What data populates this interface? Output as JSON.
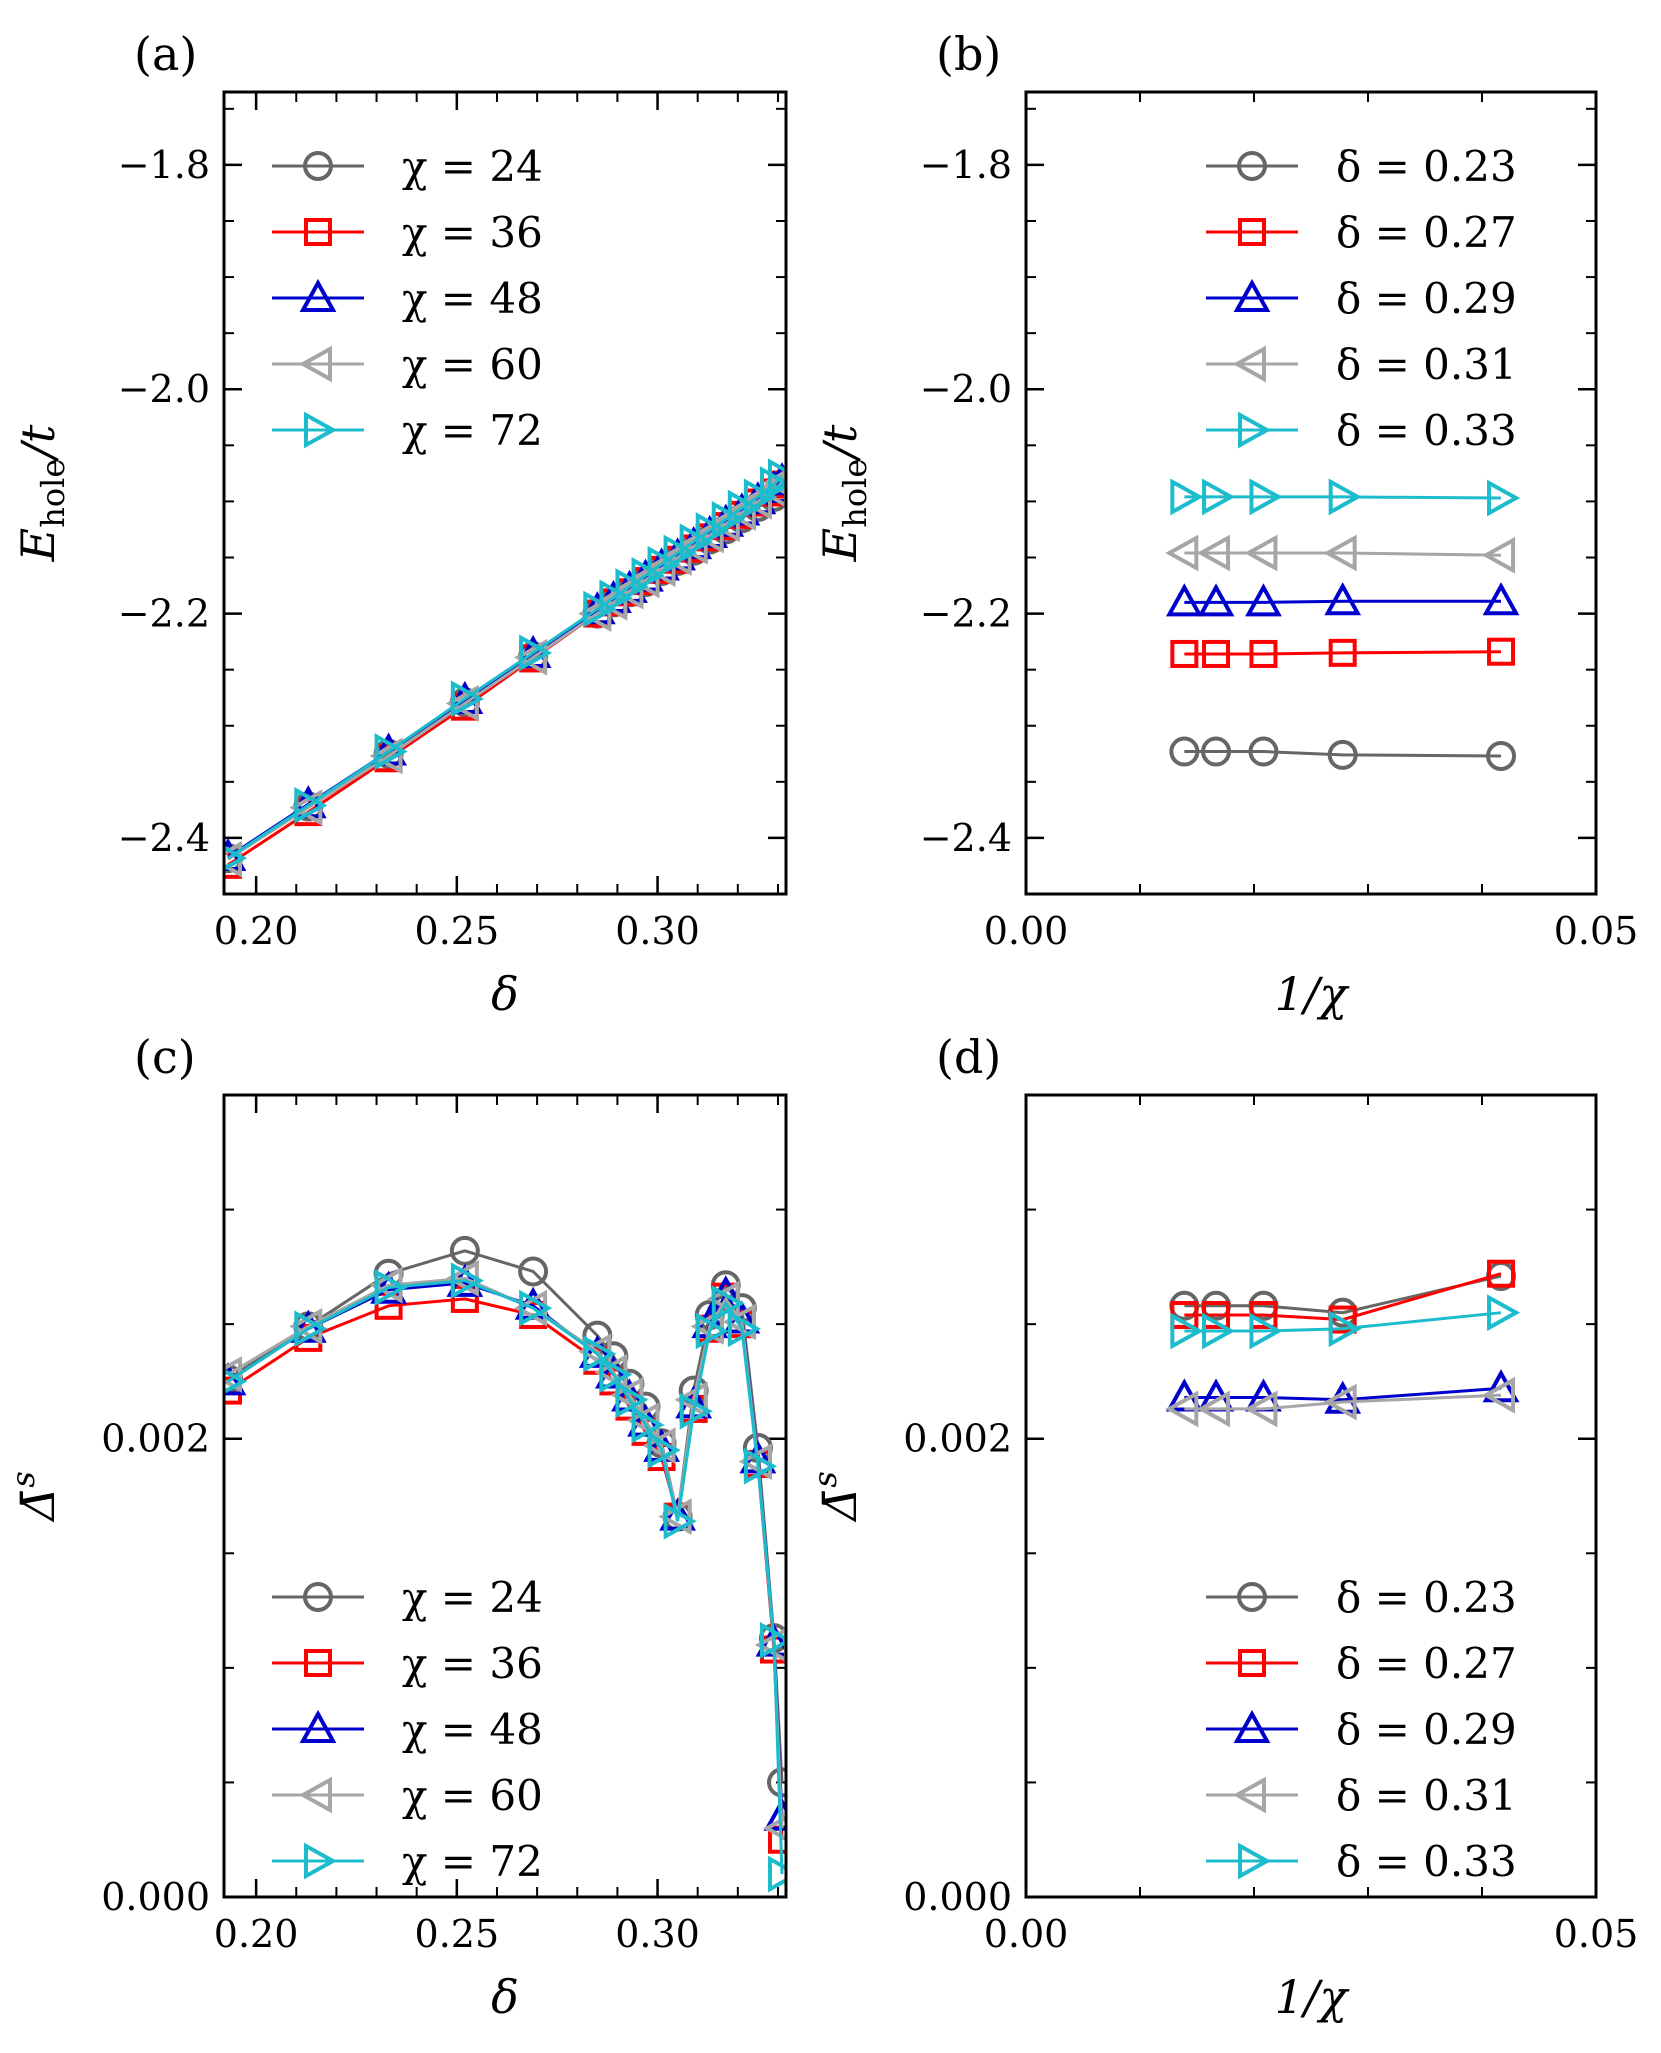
{
  "colors": {
    "gray_dark": "#666666",
    "red": "#ff0000",
    "blue": "#0000cc",
    "gray_light": "#a6a6a6",
    "cyan": "#1cbccc"
  },
  "chart_data": [
    {
      "id": "a",
      "type": "line",
      "panel_label": "(a)",
      "xlabel": "δ",
      "ylabel": "E_hole/t",
      "ylabel_main": "E",
      "ylabel_sub": "hole",
      "ylabel_tail": "/t",
      "xlim": [
        0.192,
        0.332
      ],
      "ylim": [
        -2.45,
        -1.735
      ],
      "xticks": [
        0.2,
        0.25,
        0.3
      ],
      "xtick_labels": [
        "0.20",
        "0.25",
        "0.30"
      ],
      "yticks": [
        -1.8,
        -2.0,
        -2.2,
        -2.4
      ],
      "ytick_labels": [
        "−1.8",
        "−2.0",
        "−2.2",
        "−2.4"
      ],
      "legend_position": "top-left",
      "series": [
        {
          "name": "χ = 24",
          "legend_label": "χ = 24",
          "marker": "circle",
          "color": "#666666",
          "x": [
            0.193,
            0.213,
            0.233,
            0.252,
            0.269,
            0.285,
            0.289,
            0.293,
            0.297,
            0.301,
            0.305,
            0.309,
            0.313,
            0.317,
            0.321,
            0.325,
            0.329,
            0.331
          ],
          "y": [
            -2.418,
            -2.372,
            -2.325,
            -2.279,
            -2.238,
            -2.2,
            -2.19,
            -2.181,
            -2.172,
            -2.162,
            -2.153,
            -2.144,
            -2.134,
            -2.125,
            -2.115,
            -2.105,
            -2.096,
            -2.089
          ]
        },
        {
          "name": "χ = 36",
          "legend_label": "χ = 36",
          "marker": "square",
          "color": "#ff0000",
          "x": [
            0.193,
            0.213,
            0.233,
            0.252,
            0.269,
            0.285,
            0.289,
            0.293,
            0.297,
            0.301,
            0.305,
            0.309,
            0.313,
            0.317,
            0.321,
            0.325,
            0.329,
            0.331
          ],
          "y": [
            -2.424,
            -2.377,
            -2.329,
            -2.283,
            -2.24,
            -2.2,
            -2.19,
            -2.181,
            -2.171,
            -2.161,
            -2.152,
            -2.142,
            -2.132,
            -2.122,
            -2.112,
            -2.101,
            -2.092,
            -2.085
          ]
        },
        {
          "name": "χ = 48",
          "legend_label": "χ = 48",
          "marker": "triangle-up",
          "color": "#0000cc",
          "x": [
            0.193,
            0.213,
            0.233,
            0.252,
            0.269,
            0.285,
            0.289,
            0.293,
            0.297,
            0.301,
            0.305,
            0.309,
            0.313,
            0.317,
            0.321,
            0.325,
            0.329,
            0.331
          ],
          "y": [
            -2.417,
            -2.37,
            -2.323,
            -2.277,
            -2.236,
            -2.197,
            -2.187,
            -2.178,
            -2.168,
            -2.158,
            -2.149,
            -2.139,
            -2.129,
            -2.119,
            -2.109,
            -2.099,
            -2.089,
            -2.082
          ]
        },
        {
          "name": "χ = 60",
          "legend_label": "χ = 60",
          "marker": "triangle-left",
          "color": "#a6a6a6",
          "x": [
            0.193,
            0.213,
            0.233,
            0.252,
            0.269,
            0.285,
            0.289,
            0.293,
            0.297,
            0.301,
            0.305,
            0.309,
            0.313,
            0.317,
            0.321,
            0.325,
            0.329,
            0.331
          ],
          "y": [
            -2.419,
            -2.373,
            -2.327,
            -2.28,
            -2.239,
            -2.2,
            -2.19,
            -2.18,
            -2.17,
            -2.16,
            -2.15,
            -2.14,
            -2.13,
            -2.12,
            -2.11,
            -2.1,
            -2.09,
            -2.083
          ]
        },
        {
          "name": "χ = 72",
          "legend_label": "χ = 72",
          "marker": "triangle-right",
          "color": "#1cbccc",
          "x": [
            0.193,
            0.213,
            0.233,
            0.252,
            0.269,
            0.285,
            0.289,
            0.293,
            0.297,
            0.301,
            0.305,
            0.309,
            0.313,
            0.317,
            0.321,
            0.325,
            0.329,
            0.331
          ],
          "y": [
            -2.418,
            -2.371,
            -2.323,
            -2.276,
            -2.235,
            -2.196,
            -2.186,
            -2.176,
            -2.166,
            -2.156,
            -2.146,
            -2.136,
            -2.126,
            -2.116,
            -2.106,
            -2.096,
            -2.085,
            -2.078
          ]
        }
      ]
    },
    {
      "id": "b",
      "type": "line",
      "panel_label": "(b)",
      "xlabel": "1/χ",
      "ylabel": "E_hole/t",
      "ylabel_main": "E",
      "ylabel_sub": "hole",
      "ylabel_tail": "/t",
      "xlim": [
        0.0,
        0.05
      ],
      "ylim": [
        -2.45,
        -1.735
      ],
      "xticks": [
        0.0,
        0.05
      ],
      "xtick_labels": [
        "0.00",
        "0.05"
      ],
      "yticks": [
        -1.8,
        -2.0,
        -2.2,
        -2.4
      ],
      "ytick_labels": [
        "−1.8",
        "−2.0",
        "−2.2",
        "−2.4"
      ],
      "legend_position": "top-right",
      "series": [
        {
          "name": "δ = 0.23",
          "legend_label": "δ = 0.23",
          "marker": "circle",
          "color": "#666666",
          "x": [
            0.01389,
            0.01667,
            0.02083,
            0.02778,
            0.04167
          ],
          "y": [
            -2.323,
            -2.323,
            -2.323,
            -2.326,
            -2.327
          ]
        },
        {
          "name": "δ = 0.27",
          "legend_label": "δ = 0.27",
          "marker": "square",
          "color": "#ff0000",
          "x": [
            0.01389,
            0.01667,
            0.02083,
            0.02778,
            0.04167
          ],
          "y": [
            -2.236,
            -2.236,
            -2.236,
            -2.235,
            -2.234
          ]
        },
        {
          "name": "δ = 0.29",
          "legend_label": "δ = 0.29",
          "marker": "triangle-up",
          "color": "#0000cc",
          "x": [
            0.01389,
            0.01667,
            0.02083,
            0.02778,
            0.04167
          ],
          "y": [
            -2.19,
            -2.19,
            -2.19,
            -2.189,
            -2.189
          ]
        },
        {
          "name": "δ = 0.31",
          "legend_label": "δ = 0.31",
          "marker": "triangle-left",
          "color": "#a6a6a6",
          "x": [
            0.01389,
            0.01667,
            0.02083,
            0.02778,
            0.04167
          ],
          "y": [
            -2.146,
            -2.146,
            -2.146,
            -2.146,
            -2.148
          ]
        },
        {
          "name": "δ = 0.33",
          "legend_label": "δ = 0.33",
          "marker": "triangle-right",
          "color": "#1cbccc",
          "x": [
            0.01389,
            0.01667,
            0.02083,
            0.02778,
            0.04167
          ],
          "y": [
            -2.096,
            -2.096,
            -2.096,
            -2.096,
            -2.097
          ]
        }
      ]
    },
    {
      "id": "c",
      "type": "line",
      "panel_label": "(c)",
      "xlabel": "δ",
      "ylabel": "Δ̄^s",
      "ylabel_main": "Δ̄",
      "ylabel_sub": "",
      "ylabel_sup": "s",
      "ylabel_tail": "",
      "xlim": [
        0.192,
        0.332
      ],
      "ylim": [
        0.0,
        0.0035
      ],
      "xticks": [
        0.2,
        0.25,
        0.3
      ],
      "xtick_labels": [
        "0.20",
        "0.25",
        "0.30"
      ],
      "yticks": [
        0.0,
        0.002
      ],
      "ytick_labels": [
        "0.000",
        "0.002"
      ],
      "legend_position": "bottom-left",
      "series": [
        {
          "name": "χ = 24",
          "legend_label": "χ = 24",
          "marker": "circle",
          "color": "#666666",
          "x": [
            0.193,
            0.213,
            0.233,
            0.252,
            0.269,
            0.285,
            0.289,
            0.293,
            0.297,
            0.301,
            0.305,
            0.309,
            0.313,
            0.317,
            0.321,
            0.325,
            0.329,
            0.331
          ],
          "y": [
            0.00226,
            0.00249,
            0.00272,
            0.00282,
            0.00273,
            0.00245,
            0.00236,
            0.00224,
            0.00214,
            0.00198,
            0.00166,
            0.00221,
            0.00254,
            0.00267,
            0.00257,
            0.00196,
            0.00113,
            0.0005
          ]
        },
        {
          "name": "χ = 36",
          "legend_label": "χ = 36",
          "marker": "square",
          "color": "#ff0000",
          "x": [
            0.193,
            0.213,
            0.233,
            0.252,
            0.269,
            0.285,
            0.289,
            0.293,
            0.297,
            0.301,
            0.305,
            0.309,
            0.313,
            0.317,
            0.321,
            0.325,
            0.329,
            0.331
          ],
          "y": [
            0.00221,
            0.00244,
            0.00258,
            0.00261,
            0.00254,
            0.00234,
            0.00225,
            0.00214,
            0.00203,
            0.00192,
            0.00166,
            0.00213,
            0.00248,
            0.00262,
            0.0025,
            0.00189,
            0.00108,
            0.00025
          ]
        },
        {
          "name": "χ = 48",
          "legend_label": "χ = 48",
          "marker": "triangle-up",
          "color": "#0000cc",
          "x": [
            0.193,
            0.213,
            0.233,
            0.252,
            0.269,
            0.285,
            0.289,
            0.293,
            0.297,
            0.301,
            0.305,
            0.309,
            0.313,
            0.317,
            0.321,
            0.325,
            0.329,
            0.331
          ],
          "y": [
            0.00225,
            0.00248,
            0.00265,
            0.00268,
            0.00258,
            0.00237,
            0.00228,
            0.00218,
            0.00207,
            0.00196,
            0.00166,
            0.00215,
            0.0025,
            0.00263,
            0.00252,
            0.00191,
            0.00111,
            0.00035
          ]
        },
        {
          "name": "χ = 60",
          "legend_label": "χ = 60",
          "marker": "triangle-left",
          "color": "#a6a6a6",
          "x": [
            0.193,
            0.213,
            0.233,
            0.252,
            0.269,
            0.285,
            0.289,
            0.293,
            0.297,
            0.301,
            0.305,
            0.309,
            0.313,
            0.317,
            0.321,
            0.325,
            0.329,
            0.331
          ],
          "y": [
            0.00228,
            0.00249,
            0.00267,
            0.0027,
            0.00257,
            0.00238,
            0.00229,
            0.00219,
            0.00208,
            0.00197,
            0.00166,
            0.00217,
            0.00249,
            0.00261,
            0.00251,
            0.0019,
            0.0011,
            0.0003
          ]
        },
        {
          "name": "χ = 72",
          "legend_label": "χ = 72",
          "marker": "triangle-right",
          "color": "#1cbccc",
          "x": [
            0.193,
            0.213,
            0.233,
            0.252,
            0.269,
            0.285,
            0.289,
            0.293,
            0.297,
            0.301,
            0.305,
            0.309,
            0.313,
            0.317,
            0.321,
            0.325,
            0.329,
            0.331
          ],
          "y": [
            0.00225,
            0.00248,
            0.00266,
            0.00269,
            0.00257,
            0.00237,
            0.00228,
            0.00217,
            0.00206,
            0.00195,
            0.00164,
            0.00212,
            0.00247,
            0.00259,
            0.00248,
            0.00188,
            0.00112,
            0.0001
          ]
        }
      ]
    },
    {
      "id": "d",
      "type": "line",
      "panel_label": "(d)",
      "xlabel": "1/χ",
      "ylabel": "Δ̄^s",
      "ylabel_main": "Δ̄",
      "ylabel_sub": "",
      "ylabel_sup": "s",
      "ylabel_tail": "",
      "xlim": [
        0.0,
        0.05
      ],
      "ylim": [
        0.0,
        0.0035
      ],
      "xticks": [
        0.0,
        0.05
      ],
      "xtick_labels": [
        "0.00",
        "0.05"
      ],
      "yticks": [
        0.0,
        0.002
      ],
      "ytick_labels": [
        "0.000",
        "0.002"
      ],
      "legend_position": "bottom-right",
      "series": [
        {
          "name": "δ = 0.23",
          "legend_label": "δ = 0.23",
          "marker": "circle",
          "color": "#666666",
          "x": [
            0.01389,
            0.01667,
            0.02083,
            0.02778,
            0.04167
          ],
          "y": [
            0.00258,
            0.00258,
            0.00258,
            0.00255,
            0.00271
          ]
        },
        {
          "name": "δ = 0.27",
          "legend_label": "δ = 0.27",
          "marker": "square",
          "color": "#ff0000",
          "x": [
            0.01389,
            0.01667,
            0.02083,
            0.02778,
            0.04167
          ],
          "y": [
            0.00254,
            0.00254,
            0.00254,
            0.00252,
            0.00272
          ]
        },
        {
          "name": "δ = 0.29",
          "legend_label": "δ = 0.29",
          "marker": "triangle-up",
          "color": "#0000cc",
          "x": [
            0.01389,
            0.01667,
            0.02083,
            0.02778,
            0.04167
          ],
          "y": [
            0.00218,
            0.00218,
            0.00218,
            0.00217,
            0.00222
          ]
        },
        {
          "name": "δ = 0.31",
          "legend_label": "δ = 0.31",
          "marker": "triangle-left",
          "color": "#a6a6a6",
          "x": [
            0.01389,
            0.01667,
            0.02083,
            0.02778,
            0.04167
          ],
          "y": [
            0.00213,
            0.00213,
            0.00213,
            0.00216,
            0.00219
          ]
        },
        {
          "name": "δ = 0.33",
          "legend_label": "δ = 0.33",
          "marker": "triangle-right",
          "color": "#1cbccc",
          "x": [
            0.01389,
            0.01667,
            0.02083,
            0.02778,
            0.04167
          ],
          "y": [
            0.00247,
            0.00247,
            0.00247,
            0.00248,
            0.00255
          ]
        }
      ]
    }
  ]
}
